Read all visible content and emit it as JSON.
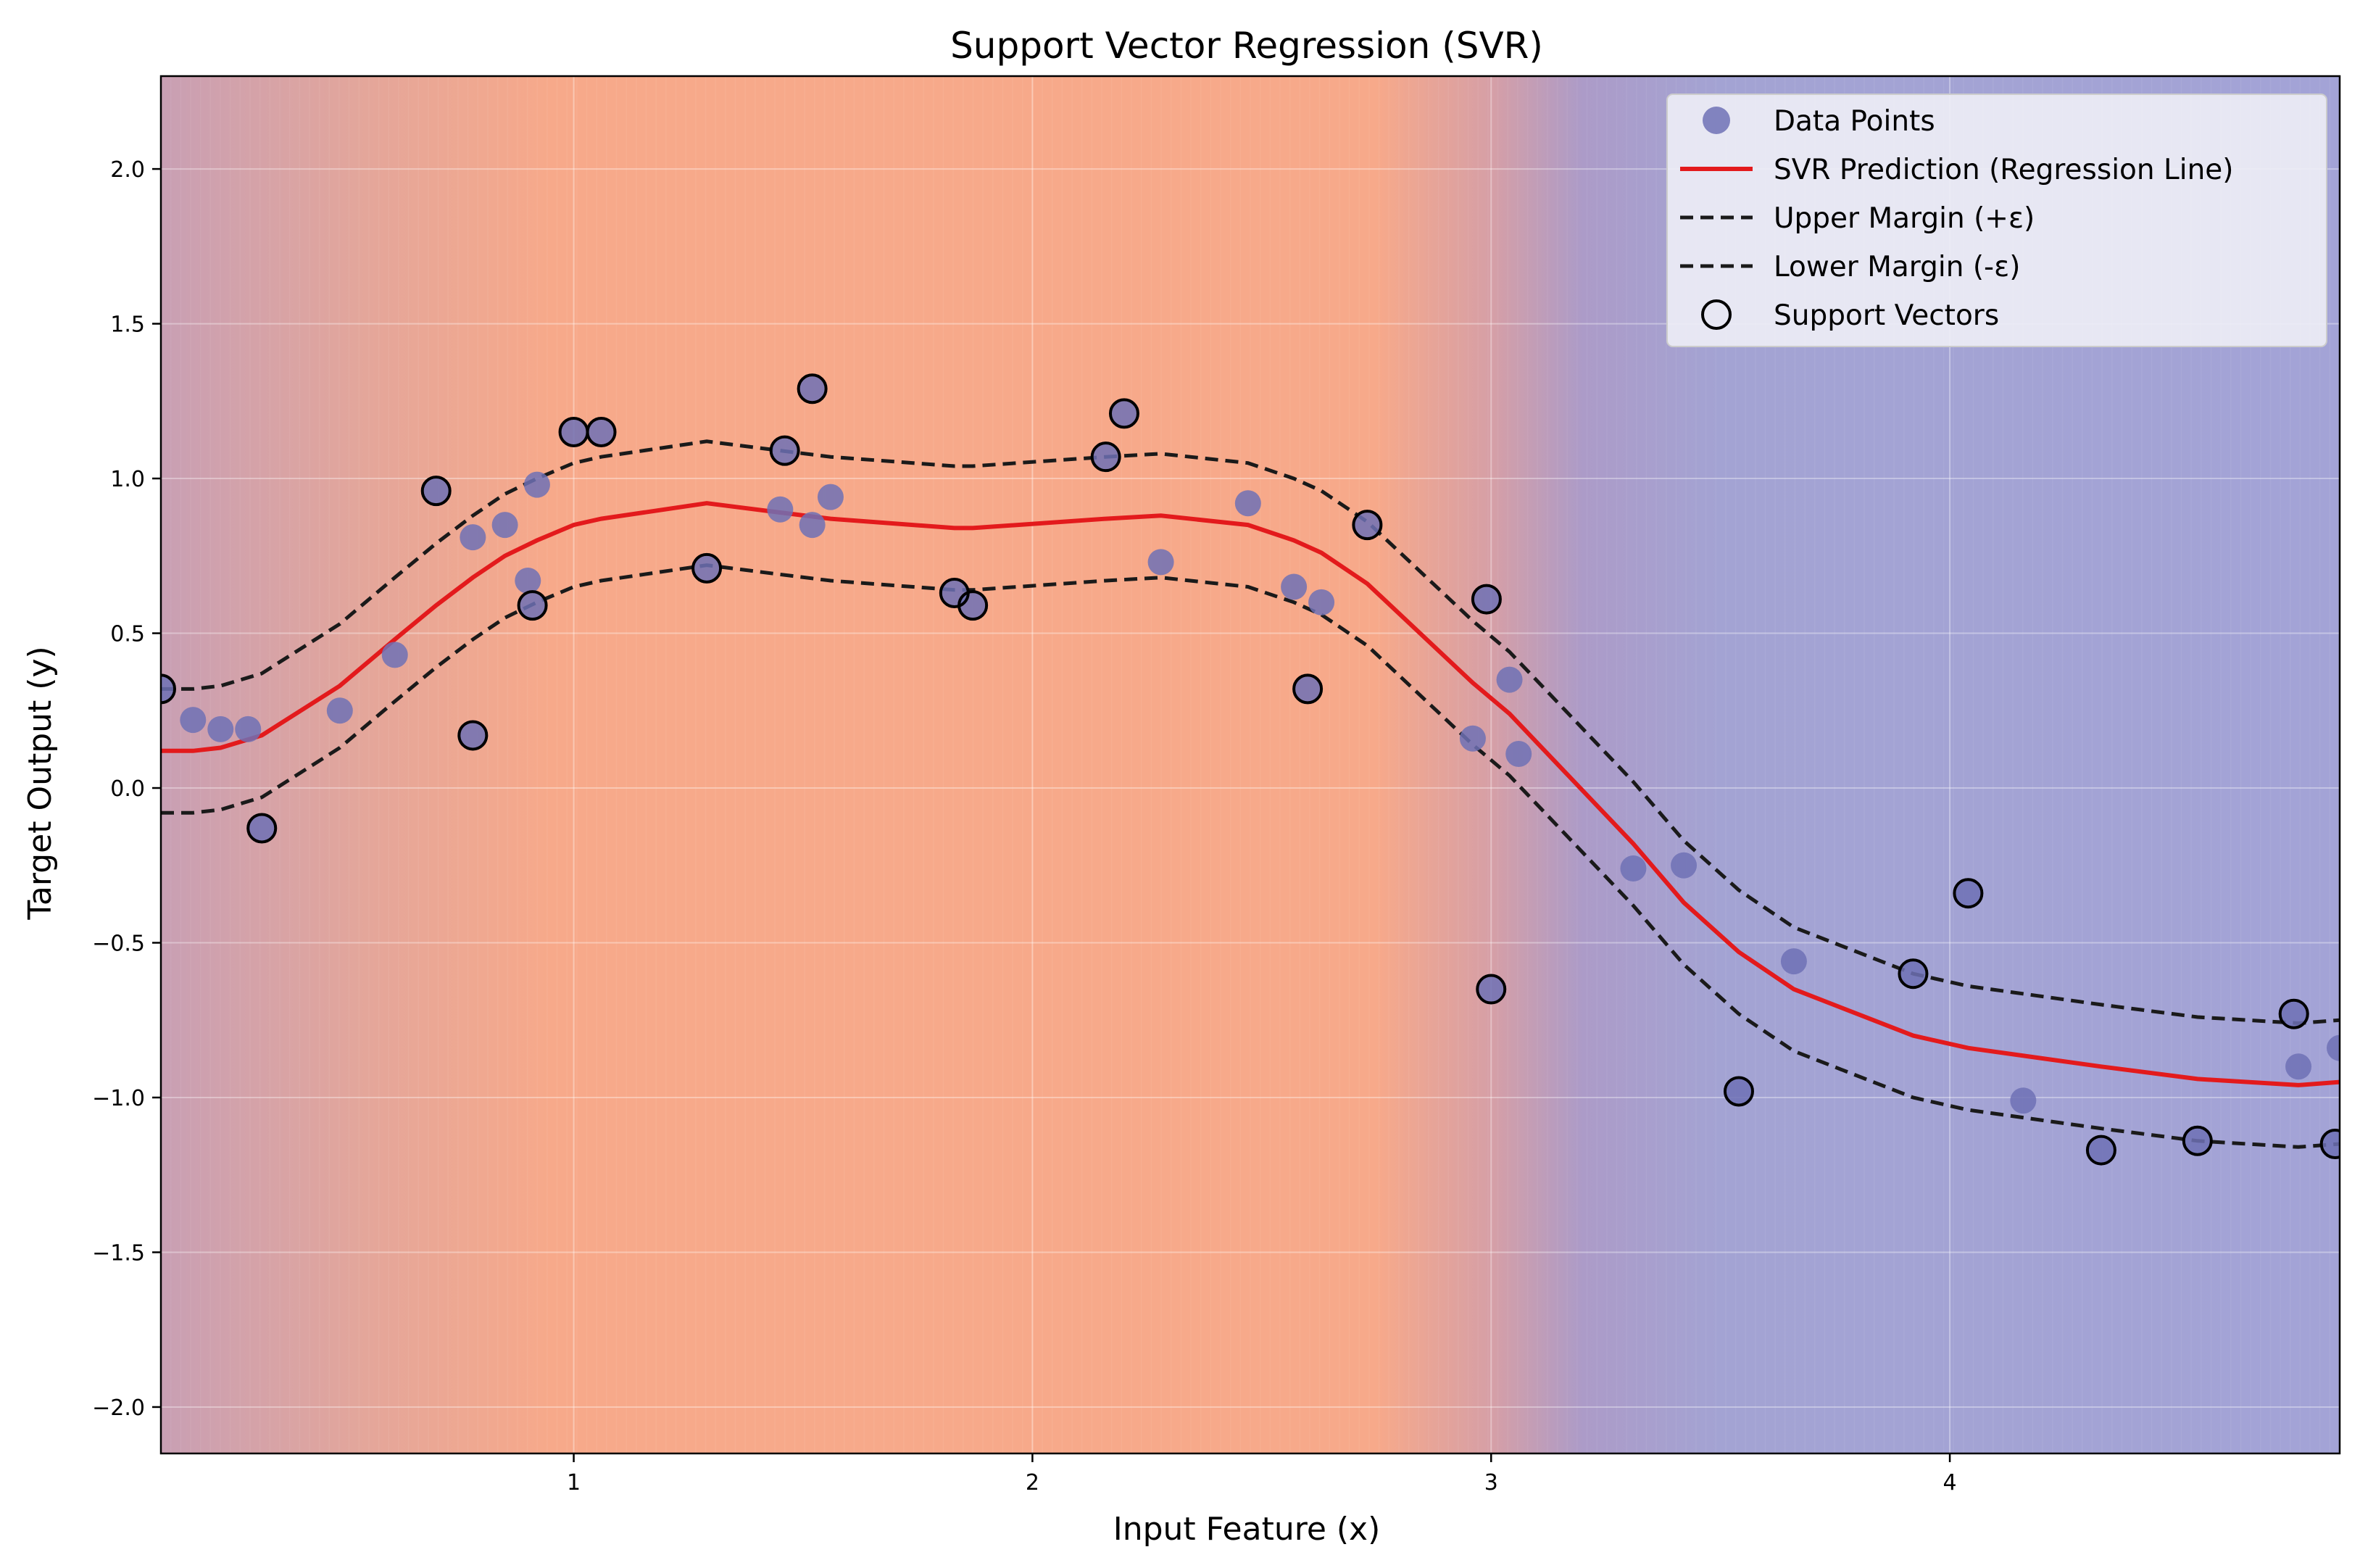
{
  "chart_data": {
    "type": "scatter",
    "title": "Support Vector Regression (SVR)",
    "xlabel": "Input Feature (x)",
    "ylabel": "Target Output (y)",
    "xlim": [
      0.1,
      4.85
    ],
    "ylim": [
      -2.15,
      2.3
    ],
    "xticks": [
      1,
      2,
      3,
      4
    ],
    "yticks": [
      2.0,
      1.5,
      1.0,
      0.5,
      0.0,
      -0.5,
      -1.0,
      -1.5,
      -2.0
    ],
    "ytick_labels": [
      "2.0",
      "1.5",
      "1.0",
      "0.5",
      "0.0",
      "−0.5",
      "−1.0",
      "−1.5",
      "−2.0"
    ],
    "grid": true,
    "legend_position": "top-right",
    "background": {
      "type": "vertical-gradient-bands",
      "stops": [
        {
          "x": 0.1,
          "color": "#c89fb4"
        },
        {
          "x": 0.55,
          "color": "#e4a69a"
        },
        {
          "x": 0.95,
          "color": "#f7a98a"
        },
        {
          "x": 2.75,
          "color": "#f7a98a"
        },
        {
          "x": 3.0,
          "color": "#d69fa6"
        },
        {
          "x": 3.2,
          "color": "#ac9bc8"
        },
        {
          "x": 3.5,
          "color": "#a3a3d3"
        },
        {
          "x": 4.85,
          "color": "#a3a3d6"
        }
      ]
    },
    "series": [
      {
        "name": "Data Points",
        "kind": "scatter",
        "color": "#6f71b5",
        "points": [
          [
            0.1,
            0.32
          ],
          [
            0.17,
            0.22
          ],
          [
            0.23,
            0.19
          ],
          [
            0.29,
            0.19
          ],
          [
            0.32,
            -0.13
          ],
          [
            0.49,
            0.25
          ],
          [
            0.61,
            0.43
          ],
          [
            0.7,
            0.96
          ],
          [
            0.78,
            0.81
          ],
          [
            0.78,
            0.17
          ],
          [
            0.85,
            0.85
          ],
          [
            0.9,
            0.67
          ],
          [
            0.91,
            0.59
          ],
          [
            0.92,
            0.98
          ],
          [
            1.0,
            1.15
          ],
          [
            1.06,
            1.15
          ],
          [
            1.29,
            0.71
          ],
          [
            1.45,
            0.9
          ],
          [
            1.46,
            1.09
          ],
          [
            1.52,
            0.85
          ],
          [
            1.52,
            1.29
          ],
          [
            1.56,
            0.94
          ],
          [
            1.83,
            0.63
          ],
          [
            1.87,
            0.59
          ],
          [
            2.16,
            1.07
          ],
          [
            2.2,
            1.21
          ],
          [
            2.28,
            0.73
          ],
          [
            2.47,
            0.92
          ],
          [
            2.57,
            0.65
          ],
          [
            2.6,
            0.32
          ],
          [
            2.63,
            0.6
          ],
          [
            2.73,
            0.85
          ],
          [
            2.96,
            0.16
          ],
          [
            2.99,
            0.61
          ],
          [
            3.0,
            -0.65
          ],
          [
            3.04,
            0.35
          ],
          [
            3.06,
            0.11
          ],
          [
            3.31,
            -0.26
          ],
          [
            3.42,
            -0.25
          ],
          [
            3.54,
            -0.98
          ],
          [
            3.66,
            -0.56
          ],
          [
            3.92,
            -0.6
          ],
          [
            4.04,
            -0.34
          ],
          [
            4.16,
            -1.01
          ],
          [
            4.33,
            -1.17
          ],
          [
            4.54,
            -1.14
          ],
          [
            4.75,
            -0.73
          ],
          [
            4.76,
            -0.9
          ],
          [
            4.84,
            -1.15
          ],
          [
            4.85,
            -0.84
          ]
        ]
      },
      {
        "name": "SVR Prediction (Regression Line)",
        "kind": "line",
        "color": "#e31a1c",
        "x": [
          0.1,
          0.17,
          0.23,
          0.32,
          0.49,
          0.61,
          0.7,
          0.78,
          0.85,
          0.92,
          1.0,
          1.06,
          1.29,
          1.45,
          1.56,
          1.83,
          1.87,
          2.16,
          2.28,
          2.47,
          2.57,
          2.63,
          2.73,
          2.96,
          3.04,
          3.31,
          3.42,
          3.54,
          3.66,
          3.92,
          4.04,
          4.33,
          4.54,
          4.76,
          4.85
        ],
        "y": [
          0.12,
          0.12,
          0.13,
          0.17,
          0.33,
          0.48,
          0.59,
          0.68,
          0.75,
          0.8,
          0.85,
          0.87,
          0.92,
          0.89,
          0.87,
          0.84,
          0.84,
          0.87,
          0.88,
          0.85,
          0.8,
          0.76,
          0.66,
          0.34,
          0.24,
          -0.18,
          -0.37,
          -0.53,
          -0.65,
          -0.8,
          -0.84,
          -0.9,
          -0.94,
          -0.96,
          -0.95
        ]
      },
      {
        "name": "Upper Margin (+ε)",
        "kind": "dashed-line",
        "color": "#1a1a1a",
        "x": [
          0.1,
          0.17,
          0.23,
          0.32,
          0.49,
          0.61,
          0.7,
          0.78,
          0.85,
          0.92,
          1.0,
          1.06,
          1.29,
          1.45,
          1.56,
          1.83,
          1.87,
          2.16,
          2.28,
          2.47,
          2.57,
          2.63,
          2.73,
          2.96,
          3.04,
          3.31,
          3.42,
          3.54,
          3.66,
          3.92,
          4.04,
          4.33,
          4.54,
          4.76,
          4.85
        ],
        "y": [
          0.32,
          0.32,
          0.33,
          0.37,
          0.53,
          0.68,
          0.79,
          0.88,
          0.95,
          1.0,
          1.05,
          1.07,
          1.12,
          1.09,
          1.07,
          1.04,
          1.04,
          1.07,
          1.08,
          1.05,
          1.0,
          0.96,
          0.86,
          0.54,
          0.44,
          0.02,
          -0.17,
          -0.33,
          -0.45,
          -0.6,
          -0.64,
          -0.7,
          -0.74,
          -0.76,
          -0.75
        ]
      },
      {
        "name": "Lower Margin (-ε)",
        "kind": "dashed-line",
        "color": "#1a1a1a",
        "x": [
          0.1,
          0.17,
          0.23,
          0.32,
          0.49,
          0.61,
          0.7,
          0.78,
          0.85,
          0.92,
          1.0,
          1.06,
          1.29,
          1.45,
          1.56,
          1.83,
          1.87,
          2.16,
          2.28,
          2.47,
          2.57,
          2.63,
          2.73,
          2.96,
          3.04,
          3.31,
          3.42,
          3.54,
          3.66,
          3.92,
          4.04,
          4.33,
          4.54,
          4.76,
          4.85
        ],
        "y": [
          -0.08,
          -0.08,
          -0.07,
          -0.03,
          0.13,
          0.28,
          0.39,
          0.48,
          0.55,
          0.6,
          0.65,
          0.67,
          0.72,
          0.69,
          0.67,
          0.64,
          0.64,
          0.67,
          0.68,
          0.65,
          0.6,
          0.56,
          0.46,
          0.14,
          0.04,
          -0.38,
          -0.57,
          -0.73,
          -0.85,
          -1.0,
          -1.04,
          -1.1,
          -1.14,
          -1.16,
          -1.15
        ]
      },
      {
        "name": "Support Vectors",
        "kind": "hollow-circles",
        "color": "#000000",
        "points": [
          [
            0.1,
            0.32
          ],
          [
            0.32,
            -0.13
          ],
          [
            0.7,
            0.96
          ],
          [
            0.78,
            0.17
          ],
          [
            0.91,
            0.59
          ],
          [
            1.0,
            1.15
          ],
          [
            1.06,
            1.15
          ],
          [
            1.29,
            0.71
          ],
          [
            1.46,
            1.09
          ],
          [
            1.52,
            1.29
          ],
          [
            1.83,
            0.63
          ],
          [
            1.87,
            0.59
          ],
          [
            2.16,
            1.07
          ],
          [
            2.2,
            1.21
          ],
          [
            2.6,
            0.32
          ],
          [
            2.73,
            0.85
          ],
          [
            2.99,
            0.61
          ],
          [
            3.0,
            -0.65
          ],
          [
            3.54,
            -0.98
          ],
          [
            3.92,
            -0.6
          ],
          [
            4.04,
            -0.34
          ],
          [
            4.33,
            -1.17
          ],
          [
            4.54,
            -1.14
          ],
          [
            4.75,
            -0.73
          ],
          [
            4.84,
            -1.15
          ]
        ]
      }
    ]
  }
}
